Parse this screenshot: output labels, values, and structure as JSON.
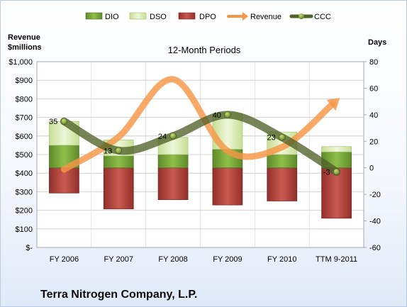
{
  "chart_data": {
    "type": "bar",
    "title": "12-Month Periods",
    "footer": "Terra Nitrogen Company, L.P.",
    "categories": [
      "FY 2006",
      "FY 2007",
      "FY 2008",
      "FY 2009",
      "FY 2010",
      "TTM 9-2011"
    ],
    "left_axis": {
      "title_line1": "Revenue",
      "title_line2": "$millions",
      "range": [
        0,
        1000
      ],
      "step": 100,
      "tick_labels": [
        "$-",
        "$100",
        "$200",
        "$300",
        "$400",
        "$500",
        "$600",
        "$700",
        "$800",
        "$900",
        "$1,000"
      ]
    },
    "right_axis": {
      "title": "Days",
      "range": [
        -60,
        80
      ],
      "step": 20,
      "tick_labels": [
        "-60",
        "-40",
        "-20",
        "0",
        "20",
        "40",
        "60",
        "80"
      ]
    },
    "legend": [
      "DIO",
      "DSO",
      "DPO",
      "Revenue",
      "CCC"
    ],
    "series": [
      {
        "name": "DIO",
        "axis": "right",
        "kind": "stacked-bar",
        "color": "#76a33a",
        "values": [
          17,
          9,
          10,
          14,
          10,
          12
        ]
      },
      {
        "name": "DSO",
        "axis": "right",
        "kind": "stacked-bar",
        "color": "#d9ebb3",
        "values": [
          18,
          12,
          13,
          27,
          17,
          4
        ]
      },
      {
        "name": "DPO",
        "axis": "right",
        "kind": "bar-below-zero",
        "color": "#b5443c",
        "values": [
          -19,
          -31,
          -24,
          -28,
          -25,
          -38
        ]
      },
      {
        "name": "Revenue",
        "axis": "left",
        "kind": "line",
        "color": "#f79646",
        "values": [
          420,
          595,
          905,
          520,
          540,
          790
        ]
      },
      {
        "name": "CCC",
        "axis": "right",
        "kind": "line",
        "color": "#4f6228",
        "values": [
          35,
          13,
          24,
          40,
          23,
          -3
        ]
      }
    ],
    "ccc_labels": [
      "35",
      "13",
      "24",
      "40",
      "23",
      "-3"
    ],
    "grid": true,
    "legend_position": "top"
  }
}
